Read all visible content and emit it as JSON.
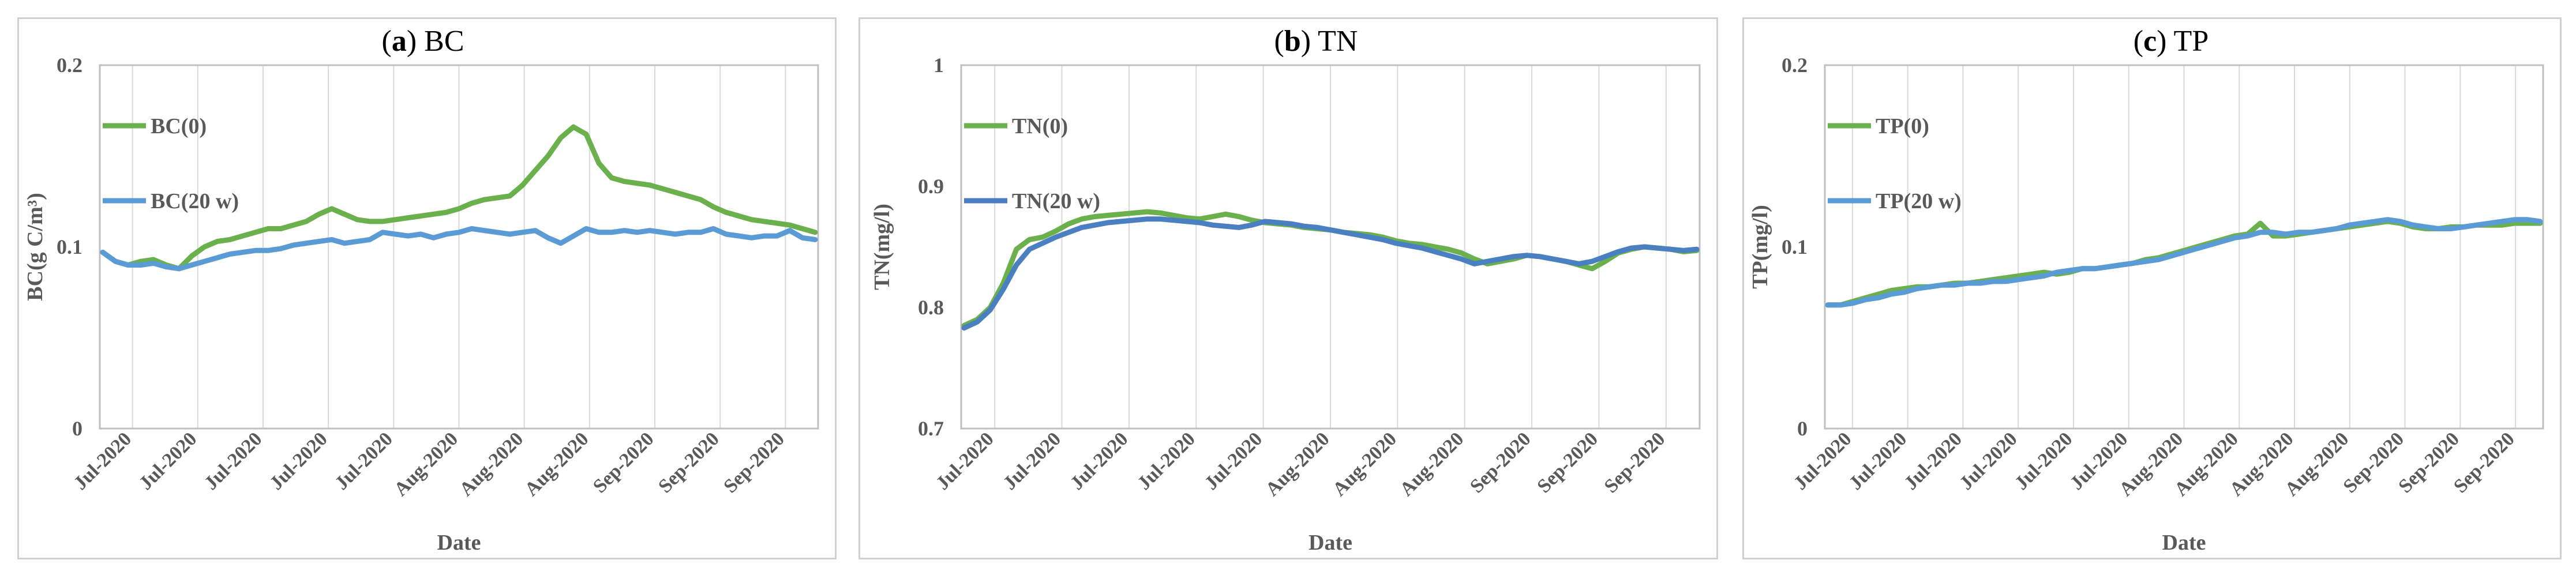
{
  "colors": {
    "series0": "#6ab04c",
    "series20": "#5b9bd5",
    "grid": "#d9d9d9",
    "axis": "#bfbfbf",
    "text": "#595959"
  },
  "chart_data": [
    {
      "type": "line",
      "panel_letter": "a",
      "title_text": "BC",
      "xlabel": "Date",
      "ylabel": "BC(g C/m³)",
      "ylim": [
        0,
        0.2
      ],
      "yticks": [
        "0",
        "0.1",
        "0.2"
      ],
      "x_tick_labels": [
        "Jul-2020",
        "Jul-2020",
        "Jul-2020",
        "Jul-2020",
        "Jul-2020",
        "Aug-2020",
        "Aug-2020",
        "Aug-2020",
        "Sep-2020",
        "Sep-2020",
        "Sep-2020"
      ],
      "grid": "vertical",
      "legend_position": "left",
      "series": [
        {
          "name": "BC(0)",
          "color": "#6ab04c",
          "values": [
            0.097,
            0.092,
            0.09,
            0.092,
            0.093,
            0.09,
            0.088,
            0.095,
            0.1,
            0.103,
            0.104,
            0.106,
            0.108,
            0.11,
            0.11,
            0.112,
            0.114,
            0.118,
            0.121,
            0.118,
            0.115,
            0.114,
            0.114,
            0.115,
            0.116,
            0.117,
            0.118,
            0.119,
            0.121,
            0.124,
            0.126,
            0.127,
            0.128,
            0.134,
            0.142,
            0.15,
            0.16,
            0.166,
            0.162,
            0.146,
            0.138,
            0.136,
            0.135,
            0.134,
            0.132,
            0.13,
            0.128,
            0.126,
            0.122,
            0.119,
            0.117,
            0.115,
            0.114,
            0.113,
            0.112,
            0.11,
            0.108
          ]
        },
        {
          "name": "BC(20 w)",
          "color": "#5b9bd5",
          "values": [
            0.097,
            0.092,
            0.09,
            0.09,
            0.091,
            0.089,
            0.088,
            0.09,
            0.092,
            0.094,
            0.096,
            0.097,
            0.098,
            0.098,
            0.099,
            0.101,
            0.102,
            0.103,
            0.104,
            0.102,
            0.103,
            0.104,
            0.108,
            0.107,
            0.106,
            0.107,
            0.105,
            0.107,
            0.108,
            0.11,
            0.109,
            0.108,
            0.107,
            0.108,
            0.109,
            0.105,
            0.102,
            0.106,
            0.11,
            0.108,
            0.108,
            0.109,
            0.108,
            0.109,
            0.108,
            0.107,
            0.108,
            0.108,
            0.11,
            0.107,
            0.106,
            0.105,
            0.106,
            0.106,
            0.109,
            0.105,
            0.104
          ]
        }
      ]
    },
    {
      "type": "line",
      "panel_letter": "b",
      "title_text": "TN",
      "xlabel": "Date",
      "ylabel": "TN(mg/l)",
      "ylim": [
        0.7,
        1
      ],
      "yticks": [
        "0.7",
        "0.8",
        "0.9",
        "1"
      ],
      "x_tick_labels": [
        "Jul-2020",
        "Jul-2020",
        "Jul-2020",
        "Jul-2020",
        "Jul-2020",
        "Aug-2020",
        "Aug-2020",
        "Aug-2020",
        "Sep-2020",
        "Sep-2020",
        "Sep-2020"
      ],
      "grid": "vertical",
      "legend_position": "left",
      "series": [
        {
          "name": "TN(0)",
          "color": "#6ab04c",
          "values": [
            0.785,
            0.79,
            0.8,
            0.82,
            0.848,
            0.856,
            0.858,
            0.863,
            0.869,
            0.873,
            0.875,
            0.876,
            0.877,
            0.878,
            0.879,
            0.878,
            0.876,
            0.874,
            0.873,
            0.875,
            0.877,
            0.875,
            0.872,
            0.87,
            0.869,
            0.868,
            0.866,
            0.865,
            0.864,
            0.862,
            0.861,
            0.86,
            0.858,
            0.855,
            0.853,
            0.852,
            0.85,
            0.848,
            0.845,
            0.84,
            0.836,
            0.838,
            0.84,
            0.843,
            0.842,
            0.84,
            0.838,
            0.835,
            0.832,
            0.838,
            0.845,
            0.848,
            0.85,
            0.849,
            0.848,
            0.846,
            0.847
          ]
        },
        {
          "name": "TN(20 w)",
          "color": "#4a7fc1",
          "values": [
            0.783,
            0.788,
            0.798,
            0.815,
            0.835,
            0.848,
            0.853,
            0.858,
            0.862,
            0.866,
            0.868,
            0.87,
            0.871,
            0.872,
            0.873,
            0.873,
            0.872,
            0.871,
            0.87,
            0.868,
            0.867,
            0.866,
            0.868,
            0.871,
            0.87,
            0.869,
            0.867,
            0.866,
            0.864,
            0.862,
            0.86,
            0.858,
            0.856,
            0.853,
            0.851,
            0.849,
            0.846,
            0.843,
            0.84,
            0.836,
            0.838,
            0.84,
            0.842,
            0.843,
            0.842,
            0.84,
            0.838,
            0.836,
            0.838,
            0.842,
            0.846,
            0.849,
            0.85,
            0.849,
            0.848,
            0.847,
            0.848
          ]
        }
      ]
    },
    {
      "type": "line",
      "panel_letter": "c",
      "title_text": "TP",
      "xlabel": "Date",
      "ylabel": "TP(mg/l)",
      "ylim": [
        0,
        0.2
      ],
      "yticks": [
        "0",
        "0.1",
        "0.2"
      ],
      "x_tick_labels": [
        "Jul-2020",
        "Jul-2020",
        "Jul-2020",
        "Jul-2020",
        "Jul-2020",
        "Jul-2020",
        "Aug-2020",
        "Aug-2020",
        "Aug-2020",
        "Aug-2020",
        "Sep-2020",
        "Sep-2020",
        "Sep-2020"
      ],
      "grid": "vertical",
      "legend_position": "left",
      "series": [
        {
          "name": "TP(0)",
          "color": "#6ab04c",
          "values": [
            0.068,
            0.068,
            0.07,
            0.072,
            0.074,
            0.076,
            0.077,
            0.078,
            0.078,
            0.079,
            0.08,
            0.08,
            0.081,
            0.082,
            0.083,
            0.084,
            0.085,
            0.086,
            0.085,
            0.086,
            0.088,
            0.088,
            0.089,
            0.09,
            0.091,
            0.093,
            0.094,
            0.096,
            0.098,
            0.1,
            0.102,
            0.104,
            0.106,
            0.107,
            0.113,
            0.106,
            0.106,
            0.107,
            0.108,
            0.109,
            0.11,
            0.111,
            0.112,
            0.113,
            0.114,
            0.113,
            0.111,
            0.11,
            0.11,
            0.111,
            0.111,
            0.112,
            0.112,
            0.112,
            0.113,
            0.113,
            0.113
          ]
        },
        {
          "name": "TP(20 w)",
          "color": "#5b9bd5",
          "values": [
            0.068,
            0.068,
            0.069,
            0.071,
            0.072,
            0.074,
            0.075,
            0.077,
            0.078,
            0.079,
            0.079,
            0.08,
            0.08,
            0.081,
            0.081,
            0.082,
            0.083,
            0.084,
            0.086,
            0.087,
            0.088,
            0.088,
            0.089,
            0.09,
            0.091,
            0.092,
            0.093,
            0.095,
            0.097,
            0.099,
            0.101,
            0.103,
            0.105,
            0.106,
            0.108,
            0.108,
            0.107,
            0.108,
            0.108,
            0.109,
            0.11,
            0.112,
            0.113,
            0.114,
            0.115,
            0.114,
            0.112,
            0.111,
            0.11,
            0.11,
            0.111,
            0.112,
            0.113,
            0.114,
            0.115,
            0.115,
            0.114
          ]
        }
      ]
    }
  ]
}
